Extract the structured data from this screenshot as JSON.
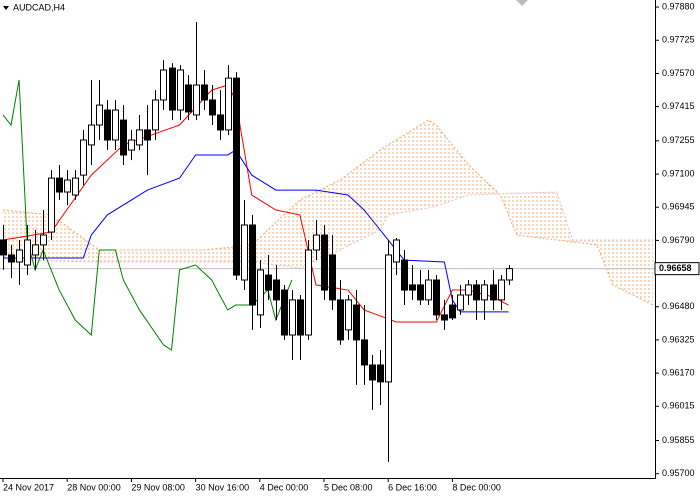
{
  "chart_data": {
    "type": "candlestick",
    "title": "AUDCAD,H4",
    "xlim": [
      0,
      81
    ],
    "xticks": [
      {
        "value": 0,
        "label": "24 Nov 2017"
      },
      {
        "value": 8,
        "label": "28 Nov 00:00"
      },
      {
        "value": 16,
        "label": "29 Nov 08:00"
      },
      {
        "value": 24,
        "label": "30 Nov 16:00"
      },
      {
        "value": 32,
        "label": "4 Dec 00:00"
      },
      {
        "value": 40,
        "label": "5 Dec 08:00"
      },
      {
        "value": 48,
        "label": "6 Dec 16:00"
      },
      {
        "value": 56,
        "label": "8 Dec 00:00"
      }
    ],
    "ylim": [
      0.9568,
      0.97913
    ],
    "yticks": [
      {
        "value": 0.9788,
        "label": "0.97880"
      },
      0.97725,
      {
        "value": 0.9757,
        "label": "0.97570"
      },
      0.97415,
      0.97255,
      {
        "value": 0.971,
        "label": "0.97100"
      },
      0.96945,
      {
        "value": 0.9679,
        "label": "0.96790"
      },
      {
        "value": 0.9648,
        "label": "0.96480"
      },
      0.96325,
      {
        "value": 0.9617,
        "label": "0.96170"
      },
      0.96015,
      0.95855,
      {
        "value": 0.957,
        "label": "0.95700"
      }
    ],
    "up_color": "#ffffff",
    "down_color": "#000000",
    "wick_color": "#000000",
    "candles": {
      "open": [
        0.96792,
        0.96722,
        0.96689,
        0.96675,
        0.96722,
        0.96769,
        0.96829,
        0.97081,
        0.97016,
        0.97002,
        0.97095,
        0.97236,
        0.97329,
        0.97399,
        0.97259,
        0.97352,
        0.97212,
        0.97236,
        0.97306,
        0.97306,
        0.97446,
        0.97595,
        0.97399,
        0.97516,
        0.97376,
        0.97516,
        0.97446,
        0.97376,
        0.97306,
        0.97548,
        0.96605,
        0.96862,
        0.96442,
        0.96628,
        0.96605,
        0.96558,
        0.96348,
        0.96512,
        0.96348,
        0.96745,
        0.96815,
        0.96722,
        0.96512,
        0.96372,
        0.96488,
        0.96325,
        0.96208,
        0.96208,
        0.96129,
        0.96689,
        0.96698,
        0.96582,
        0.96582,
        0.96512,
        0.96605,
        0.96442,
        0.96488,
        0.96465,
        0.96535,
        0.96582,
        0.96512,
        0.96582,
        0.96512,
        0.96605
      ],
      "high": [
        0.96862,
        0.96769,
        0.96792,
        0.96862,
        0.96839,
        0.96932,
        0.97119,
        0.97142,
        0.97119,
        0.97119,
        0.97306,
        0.97539,
        0.97539,
        0.97446,
        0.97446,
        0.97422,
        0.97306,
        0.97376,
        0.97422,
        0.97492,
        0.97632,
        0.97618,
        0.97609,
        0.97562,
        0.9781,
        0.97586,
        0.97516,
        0.97492,
        0.97609,
        0.97576,
        0.96979,
        0.96909,
        0.96698,
        0.96722,
        0.96675,
        0.96582,
        0.96558,
        0.96535,
        0.96792,
        0.96885,
        0.96862,
        0.96815,
        0.96605,
        0.96535,
        0.96558,
        0.96488,
        0.96255,
        0.96278,
        0.96792,
        0.96801,
        0.96745,
        0.96675,
        0.96652,
        0.96652,
        0.96628,
        0.96512,
        0.96535,
        0.96582,
        0.96605,
        0.96605,
        0.96605,
        0.96652,
        0.96628,
        0.96675
      ],
      "low": [
        0.96652,
        0.96614,
        0.96582,
        0.96628,
        0.96652,
        0.96698,
        0.96792,
        0.96979,
        0.96955,
        0.96979,
        0.97049,
        0.97142,
        0.97259,
        0.97212,
        0.97212,
        0.97142,
        0.97165,
        0.97212,
        0.97095,
        0.97259,
        0.97399,
        0.97352,
        0.97352,
        0.97352,
        0.97352,
        0.97399,
        0.97329,
        0.97259,
        0.97282,
        0.96605,
        0.96558,
        0.96372,
        0.96381,
        0.96512,
        0.96418,
        0.96325,
        0.96231,
        0.96231,
        0.96325,
        0.96698,
        0.96512,
        0.96465,
        0.96302,
        0.96325,
        0.96115,
        0.96115,
        0.95998,
        0.96021,
        0.95755,
        0.96628,
        0.96488,
        0.96512,
        0.96488,
        0.96488,
        0.96418,
        0.96372,
        0.96418,
        0.96442,
        0.96488,
        0.96418,
        0.96418,
        0.96465,
        0.96465,
        0.96582
      ],
      "close": [
        0.96722,
        0.96689,
        0.96745,
        0.96792,
        0.96769,
        0.96815,
        0.97081,
        0.97016,
        0.97072,
        0.97081,
        0.97259,
        0.97329,
        0.97422,
        0.97259,
        0.97399,
        0.97189,
        0.97259,
        0.97306,
        0.97259,
        0.97446,
        0.97586,
        0.97399,
        0.97586,
        0.9739,
        0.97516,
        0.97446,
        0.97376,
        0.97306,
        0.97548,
        0.96628,
        0.96862,
        0.96488,
        0.96652,
        0.96558,
        0.96512,
        0.96348,
        0.96512,
        0.96348,
        0.96745,
        0.96815,
        0.96558,
        0.96512,
        0.96325,
        0.96512,
        0.96325,
        0.96208,
        0.96138,
        0.96129,
        0.96722,
        0.96792,
        0.96558,
        0.96558,
        0.96512,
        0.96605,
        0.96442,
        0.96418,
        0.96428,
        0.96535,
        0.96582,
        0.96512,
        0.96582,
        0.96512,
        0.96605,
        0.96658
      ]
    },
    "lines": [
      {
        "color": "#ff0000",
        "x": [
          0,
          6,
          11,
          15,
          22,
          26,
          28,
          29,
          31,
          34,
          37,
          39,
          43,
          45,
          49,
          54,
          56,
          58,
          61,
          63
        ],
        "values": [
          0.96792,
          0.96829,
          0.97095,
          0.97236,
          0.97329,
          0.97492,
          0.97516,
          0.97446,
          0.97002,
          0.96932,
          0.96909,
          0.96582,
          0.96558,
          0.96465,
          0.96409,
          0.96409,
          0.96558,
          0.96558,
          0.96526,
          0.96488
        ]
      },
      {
        "color": "#0000ff",
        "x": [
          0,
          10,
          11,
          13,
          18,
          22,
          24,
          28,
          29,
          31,
          34,
          39,
          43,
          45,
          48,
          50,
          55,
          56,
          57,
          63
        ],
        "values": [
          0.96708,
          0.96708,
          0.96815,
          0.96909,
          0.97025,
          0.97081,
          0.97189,
          0.97189,
          0.97212,
          0.97095,
          0.97025,
          0.97025,
          0.97002,
          0.96932,
          0.96792,
          0.96698,
          0.96689,
          0.96512,
          0.96456,
          0.96456
        ]
      },
      {
        "color": "#008000",
        "x": [
          0,
          1,
          2,
          3,
          4,
          5,
          7,
          9,
          11,
          12,
          14,
          15,
          17,
          20,
          21,
          22,
          24,
          26,
          28,
          29,
          31,
          33,
          34,
          36
        ],
        "values": [
          0.97376,
          0.97329,
          0.97539,
          0.96792,
          0.96652,
          0.96745,
          0.96558,
          0.96418,
          0.96348,
          0.96745,
          0.96745,
          0.96605,
          0.96465,
          0.96302,
          0.96278,
          0.96652,
          0.96675,
          0.96605,
          0.96465,
          0.96488,
          0.96488,
          0.96558,
          0.96418,
          0.96605
        ]
      }
    ],
    "cloud": {
      "x": [
        0,
        6,
        12,
        25,
        31,
        37,
        42,
        47,
        48,
        53,
        54,
        58,
        62,
        64,
        69,
        71,
        74,
        76,
        81
      ],
      "span_a": [
        0.96932,
        0.96909,
        0.96745,
        0.96745,
        0.96769,
        0.96979,
        0.97072,
        0.97212,
        0.97236,
        0.97352,
        0.97329,
        0.97142,
        0.97002,
        0.96815,
        0.96792,
        0.96783,
        0.96769,
        0.96582,
        0.96488
      ],
      "span_b": [
        0.96698,
        0.96694,
        0.96689,
        0.96689,
        0.96689,
        0.96661,
        0.96745,
        0.96839,
        0.96909,
        0.96941,
        0.96951,
        0.97002,
        0.97007,
        0.97011,
        0.97016,
        0.96792,
        0.96792,
        0.96792,
        0.96792
      ],
      "color_a": "#f4a460",
      "color_b": "#d8bfd8"
    },
    "last_price": 0.96658
  }
}
